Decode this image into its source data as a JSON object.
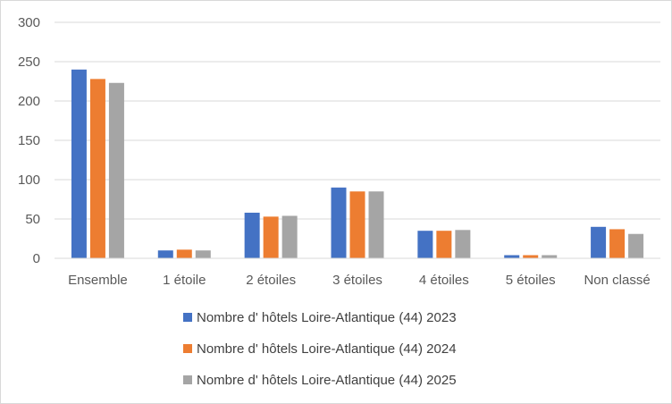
{
  "chart_data": {
    "type": "bar",
    "title": "",
    "xlabel": "",
    "ylabel": "",
    "ylim": [
      0,
      300
    ],
    "yticks": [
      0,
      50,
      100,
      150,
      200,
      250,
      300
    ],
    "grid": true,
    "legend_position": "bottom",
    "categories": [
      "Ensemble",
      "1 étoile",
      "2 étoiles",
      "3 étoiles",
      "4 étoiles",
      "5 étoiles",
      "Non classé"
    ],
    "series": [
      {
        "name": "Nombre d' hôtels Loire-Atlantique (44) 2023",
        "color": "#4472c4",
        "values": [
          240,
          10,
          58,
          90,
          35,
          4,
          40
        ]
      },
      {
        "name": "Nombre d' hôtels Loire-Atlantique (44) 2024",
        "color": "#ed7d31",
        "values": [
          228,
          11,
          53,
          85,
          35,
          4,
          37
        ]
      },
      {
        "name": "Nombre d' hôtels Loire-Atlantique (44) 2025",
        "color": "#a5a5a5",
        "values": [
          223,
          10,
          54,
          85,
          36,
          4,
          31
        ]
      }
    ]
  }
}
